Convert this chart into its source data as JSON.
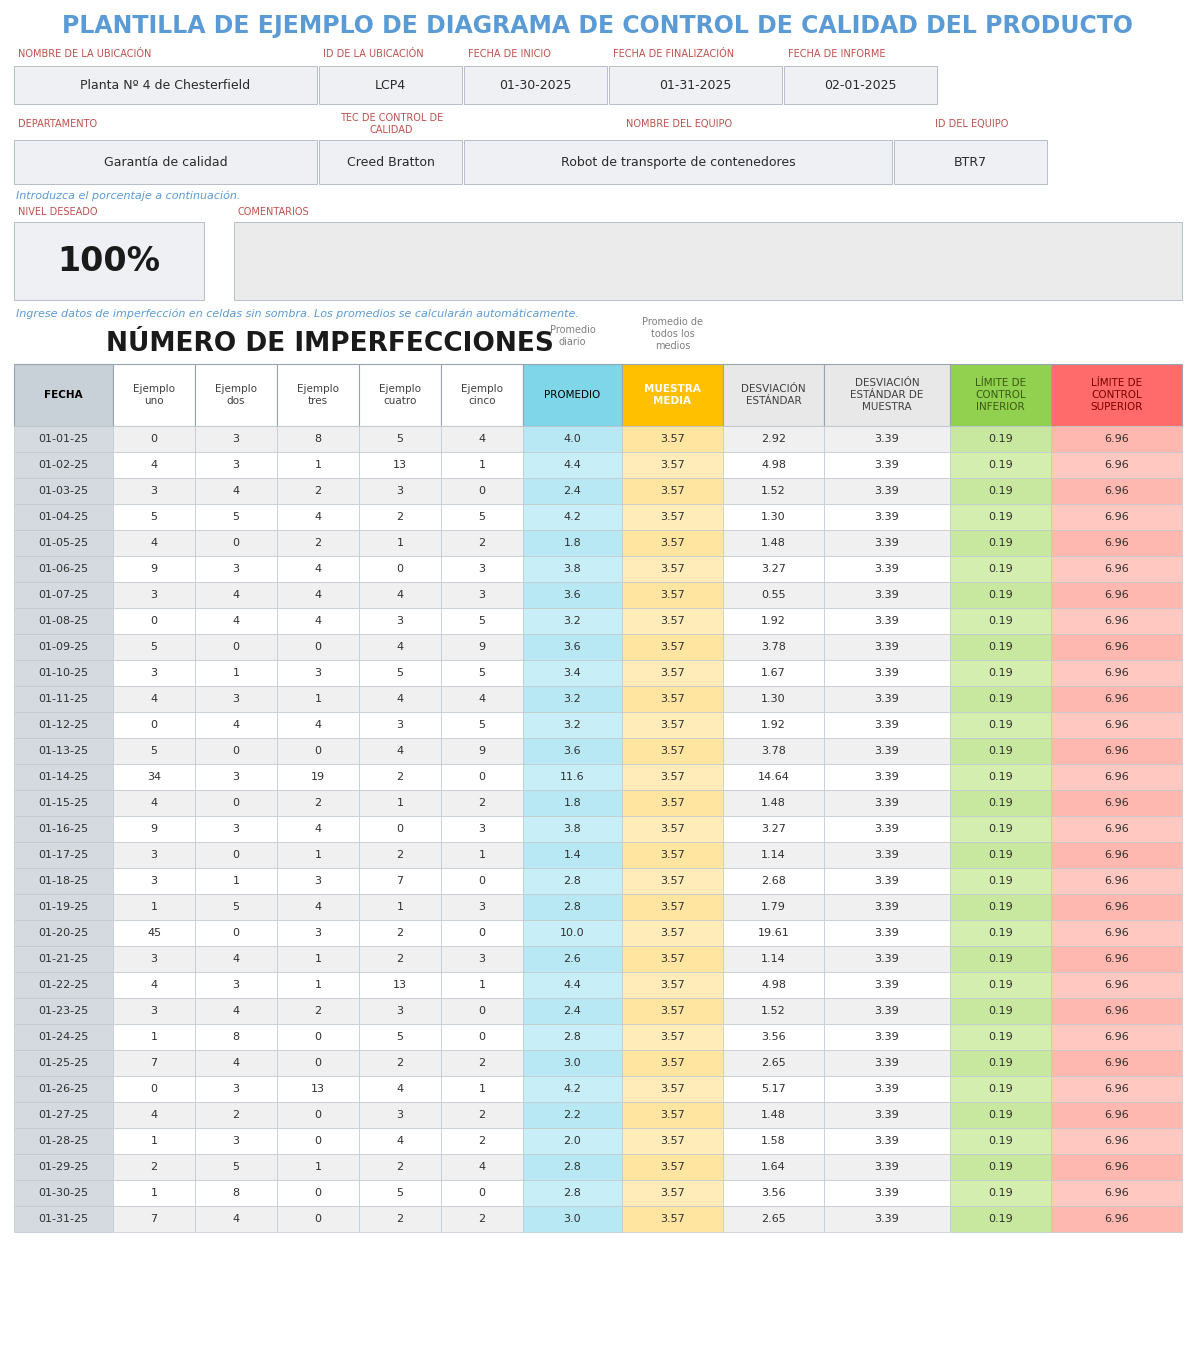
{
  "title": "PLANTILLA DE EJEMPLO DE DIAGRAMA DE CONTROL DE CALIDAD DEL PRODUCTO",
  "title_color": "#5b9bd5",
  "title_fontsize": 17,
  "header_labels_row1": [
    "NOMBRE DE LA UBICACIÓN",
    "ID DE LA UBICACIÓN",
    "FECHA DE INICIO",
    "FECHA DE FINALIZACIÓN",
    "FECHA DE INFORME"
  ],
  "header_values_row1": [
    "Planta Nº 4 de Chesterfield",
    "LCP4",
    "01-30-2025",
    "01-31-2025",
    "02-01-2025"
  ],
  "header_labels_row2": [
    "DEPARTAMENTO",
    "TEC DE CONTROL DE\nCALIDAD",
    "NOMBRE DEL EQUIPO",
    "ID DEL EQUIPO"
  ],
  "header_values_row2": [
    "Garantía de calidad",
    "Creed Bratton",
    "Robot de transporte de contenedores",
    "BTR7"
  ],
  "intro_text": "Introduzca el porcentaje a continuación.",
  "nivel_label": "NIVEL DESEADO",
  "comentarios_label": "COMENTARIOS",
  "nivel_value": "100%",
  "data_note": "Ingrese datos de imperfección en celdas sin sombra. Los promedios se calcularán automáticamente.",
  "section_title": "NÚMERO DE IMPERFECCIONES",
  "col_bg_colors": [
    "#c8d0d8",
    "#ffffff",
    "#ffffff",
    "#ffffff",
    "#ffffff",
    "#ffffff",
    "#7fd6e8",
    "#ffc000",
    "#e8e8e8",
    "#e8e8e8",
    "#92d050",
    "#ff6b6b"
  ],
  "col_header_text_colors": [
    "#000000",
    "#404040",
    "#404040",
    "#404040",
    "#404040",
    "#404040",
    "#000000",
    "#ffffff",
    "#404040",
    "#404040",
    "#375c10",
    "#7b0000"
  ],
  "rows": [
    [
      "01-01-25",
      "0",
      "3",
      "8",
      "5",
      "4",
      "4.0",
      "3.57",
      "2.92",
      "3.39",
      "0.19",
      "6.96"
    ],
    [
      "01-02-25",
      "4",
      "3",
      "1",
      "13",
      "1",
      "4.4",
      "3.57",
      "4.98",
      "3.39",
      "0.19",
      "6.96"
    ],
    [
      "01-03-25",
      "3",
      "4",
      "2",
      "3",
      "0",
      "2.4",
      "3.57",
      "1.52",
      "3.39",
      "0.19",
      "6.96"
    ],
    [
      "01-04-25",
      "5",
      "5",
      "4",
      "2",
      "5",
      "4.2",
      "3.57",
      "1.30",
      "3.39",
      "0.19",
      "6.96"
    ],
    [
      "01-05-25",
      "4",
      "0",
      "2",
      "1",
      "2",
      "1.8",
      "3.57",
      "1.48",
      "3.39",
      "0.19",
      "6.96"
    ],
    [
      "01-06-25",
      "9",
      "3",
      "4",
      "0",
      "3",
      "3.8",
      "3.57",
      "3.27",
      "3.39",
      "0.19",
      "6.96"
    ],
    [
      "01-07-25",
      "3",
      "4",
      "4",
      "4",
      "3",
      "3.6",
      "3.57",
      "0.55",
      "3.39",
      "0.19",
      "6.96"
    ],
    [
      "01-08-25",
      "0",
      "4",
      "4",
      "3",
      "5",
      "3.2",
      "3.57",
      "1.92",
      "3.39",
      "0.19",
      "6.96"
    ],
    [
      "01-09-25",
      "5",
      "0",
      "0",
      "4",
      "9",
      "3.6",
      "3.57",
      "3.78",
      "3.39",
      "0.19",
      "6.96"
    ],
    [
      "01-10-25",
      "3",
      "1",
      "3",
      "5",
      "5",
      "3.4",
      "3.57",
      "1.67",
      "3.39",
      "0.19",
      "6.96"
    ],
    [
      "01-11-25",
      "4",
      "3",
      "1",
      "4",
      "4",
      "3.2",
      "3.57",
      "1.30",
      "3.39",
      "0.19",
      "6.96"
    ],
    [
      "01-12-25",
      "0",
      "4",
      "4",
      "3",
      "5",
      "3.2",
      "3.57",
      "1.92",
      "3.39",
      "0.19",
      "6.96"
    ],
    [
      "01-13-25",
      "5",
      "0",
      "0",
      "4",
      "9",
      "3.6",
      "3.57",
      "3.78",
      "3.39",
      "0.19",
      "6.96"
    ],
    [
      "01-14-25",
      "34",
      "3",
      "19",
      "2",
      "0",
      "11.6",
      "3.57",
      "14.64",
      "3.39",
      "0.19",
      "6.96"
    ],
    [
      "01-15-25",
      "4",
      "0",
      "2",
      "1",
      "2",
      "1.8",
      "3.57",
      "1.48",
      "3.39",
      "0.19",
      "6.96"
    ],
    [
      "01-16-25",
      "9",
      "3",
      "4",
      "0",
      "3",
      "3.8",
      "3.57",
      "3.27",
      "3.39",
      "0.19",
      "6.96"
    ],
    [
      "01-17-25",
      "3",
      "0",
      "1",
      "2",
      "1",
      "1.4",
      "3.57",
      "1.14",
      "3.39",
      "0.19",
      "6.96"
    ],
    [
      "01-18-25",
      "3",
      "1",
      "3",
      "7",
      "0",
      "2.8",
      "3.57",
      "2.68",
      "3.39",
      "0.19",
      "6.96"
    ],
    [
      "01-19-25",
      "1",
      "5",
      "4",
      "1",
      "3",
      "2.8",
      "3.57",
      "1.79",
      "3.39",
      "0.19",
      "6.96"
    ],
    [
      "01-20-25",
      "45",
      "0",
      "3",
      "2",
      "0",
      "10.0",
      "3.57",
      "19.61",
      "3.39",
      "0.19",
      "6.96"
    ],
    [
      "01-21-25",
      "3",
      "4",
      "1",
      "2",
      "3",
      "2.6",
      "3.57",
      "1.14",
      "3.39",
      "0.19",
      "6.96"
    ],
    [
      "01-22-25",
      "4",
      "3",
      "1",
      "13",
      "1",
      "4.4",
      "3.57",
      "4.98",
      "3.39",
      "0.19",
      "6.96"
    ],
    [
      "01-23-25",
      "3",
      "4",
      "2",
      "3",
      "0",
      "2.4",
      "3.57",
      "1.52",
      "3.39",
      "0.19",
      "6.96"
    ],
    [
      "01-24-25",
      "1",
      "8",
      "0",
      "5",
      "0",
      "2.8",
      "3.57",
      "3.56",
      "3.39",
      "0.19",
      "6.96"
    ],
    [
      "01-25-25",
      "7",
      "4",
      "0",
      "2",
      "2",
      "3.0",
      "3.57",
      "2.65",
      "3.39",
      "0.19",
      "6.96"
    ],
    [
      "01-26-25",
      "0",
      "3",
      "13",
      "4",
      "1",
      "4.2",
      "3.57",
      "5.17",
      "3.39",
      "0.19",
      "6.96"
    ],
    [
      "01-27-25",
      "4",
      "2",
      "0",
      "3",
      "2",
      "2.2",
      "3.57",
      "1.48",
      "3.39",
      "0.19",
      "6.96"
    ],
    [
      "01-28-25",
      "1",
      "3",
      "0",
      "4",
      "2",
      "2.0",
      "3.57",
      "1.58",
      "3.39",
      "0.19",
      "6.96"
    ],
    [
      "01-29-25",
      "2",
      "5",
      "1",
      "2",
      "4",
      "2.8",
      "3.57",
      "1.64",
      "3.39",
      "0.19",
      "6.96"
    ],
    [
      "01-30-25",
      "1",
      "8",
      "0",
      "5",
      "0",
      "2.8",
      "3.57",
      "3.56",
      "3.39",
      "0.19",
      "6.96"
    ],
    [
      "01-31-25",
      "7",
      "4",
      "0",
      "2",
      "2",
      "3.0",
      "3.57",
      "2.65",
      "3.39",
      "0.19",
      "6.96"
    ]
  ],
  "label_color": "#c0504d",
  "bg_white": "#ffffff",
  "bg_light": "#eef0f4",
  "bg_row_alt": "#f5f5f5"
}
